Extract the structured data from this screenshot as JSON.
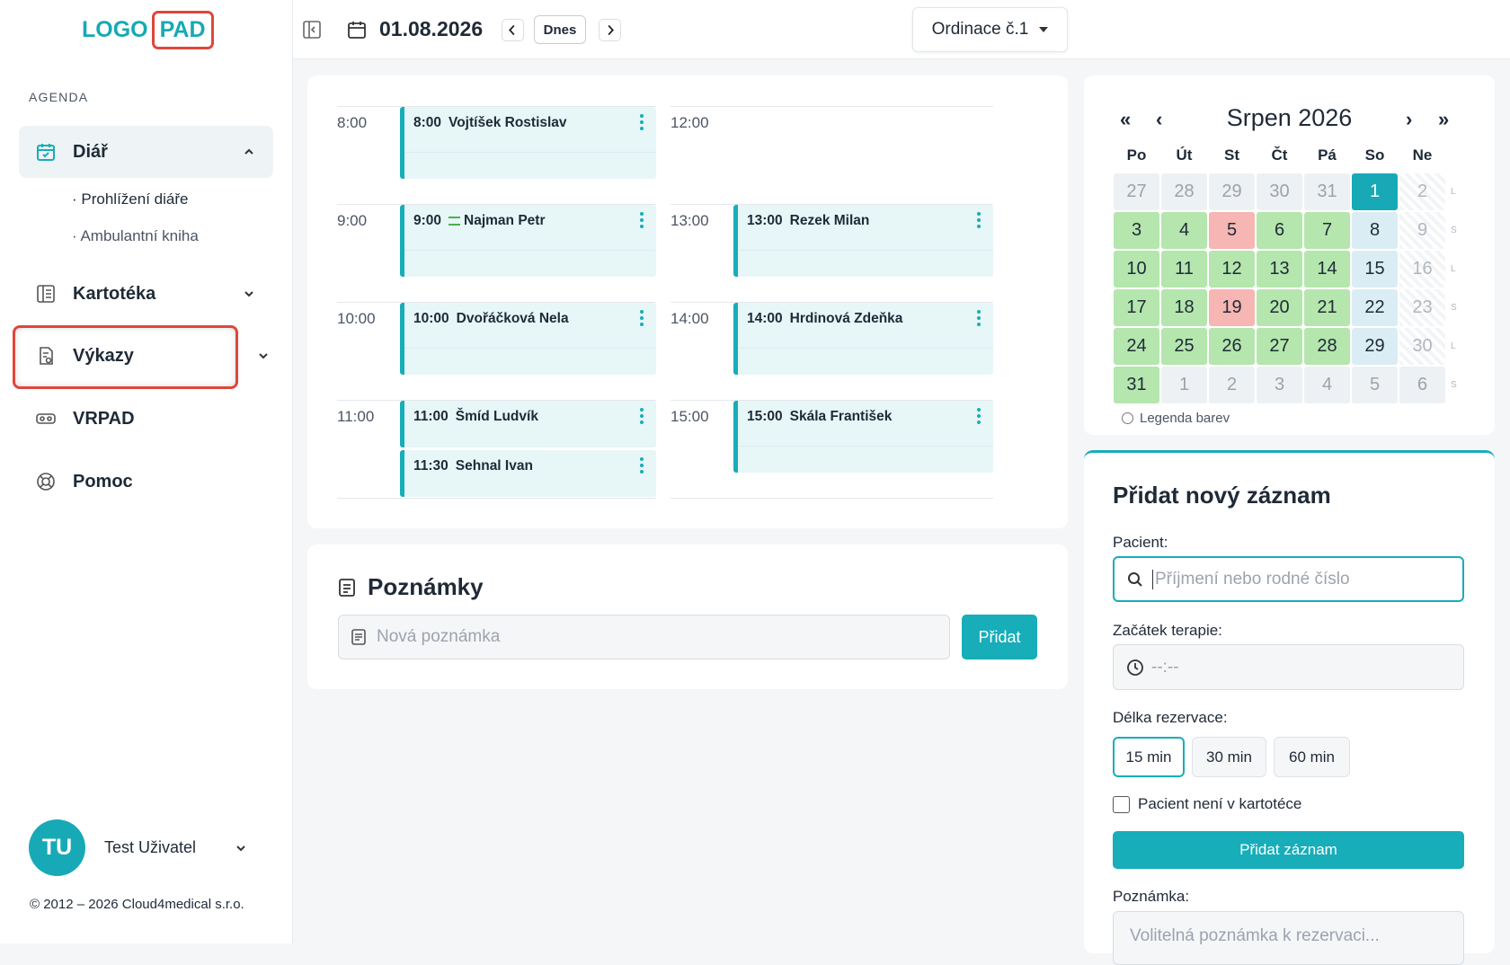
{
  "logo": {
    "left": "LOGO",
    "right": "PAD"
  },
  "sidebar": {
    "section": "AGENDA",
    "items": [
      {
        "label": "Diář",
        "sub": [
          "Prohlížení diáře",
          "Ambulantní kniha"
        ]
      },
      {
        "label": "Kartotéka"
      },
      {
        "label": "Výkazy"
      },
      {
        "label": "VRPAD"
      },
      {
        "label": "Pomoc"
      }
    ],
    "user": {
      "initials": "TU",
      "name": "Test Uživatel"
    },
    "footer": "© 2012 – 2026 Cloud4medical s.r.o."
  },
  "topbar": {
    "date": "01.08.2026",
    "today": "Dnes",
    "office": "Ordinace č.1"
  },
  "schedule": {
    "columns": [
      [
        {
          "hour": "8:00",
          "events": [
            {
              "time": "8:00",
              "name": "Vojtíšek Rostislav"
            }
          ]
        },
        {
          "hour": "9:00",
          "events": [
            {
              "time": "9:00",
              "name": "Najman Petr",
              "note_icon": true
            }
          ]
        },
        {
          "hour": "10:00",
          "events": [
            {
              "time": "10:00",
              "name": "Dvořáčková Nela"
            }
          ]
        },
        {
          "hour": "11:00",
          "events": [
            {
              "time": "11:00",
              "name": "Šmíd Ludvík"
            },
            {
              "time": "11:30",
              "name": "Sehnal Ivan"
            }
          ]
        }
      ],
      [
        {
          "hour": "12:00",
          "events": []
        },
        {
          "hour": "13:00",
          "events": [
            {
              "time": "13:00",
              "name": "Rezek Milan"
            }
          ]
        },
        {
          "hour": "14:00",
          "events": [
            {
              "time": "14:00",
              "name": "Hrdinová Zdeňka"
            }
          ]
        },
        {
          "hour": "15:00",
          "events": [
            {
              "time": "15:00",
              "name": "Skála František"
            }
          ]
        }
      ]
    ]
  },
  "notes": {
    "title": "Poznámky",
    "placeholder": "Nová poznámka",
    "button": "Přidat"
  },
  "calendar": {
    "nav": [
      "«",
      "‹",
      "›",
      "»"
    ],
    "title": "Srpen 2026",
    "weekdays": [
      "Po",
      "Út",
      "St",
      "Čt",
      "Pá",
      "So",
      "Ne"
    ],
    "weeks": [
      {
        "side": "L",
        "days": [
          {
            "day": 27,
            "state": "other"
          },
          {
            "day": 28,
            "state": "other"
          },
          {
            "day": 29,
            "state": "other"
          },
          {
            "day": 30,
            "state": "other"
          },
          {
            "day": 31,
            "state": "other"
          },
          {
            "day": 1,
            "state": "selected"
          },
          {
            "day": 2,
            "state": "sunday"
          }
        ]
      },
      {
        "side": "S",
        "days": [
          {
            "day": 3,
            "state": "free"
          },
          {
            "day": 4,
            "state": "free"
          },
          {
            "day": 5,
            "state": "full"
          },
          {
            "day": 6,
            "state": "free"
          },
          {
            "day": 7,
            "state": "free"
          },
          {
            "day": 8,
            "state": "saturday"
          },
          {
            "day": 9,
            "state": "sunday"
          }
        ]
      },
      {
        "side": "L",
        "days": [
          {
            "day": 10,
            "state": "free"
          },
          {
            "day": 11,
            "state": "free"
          },
          {
            "day": 12,
            "state": "free"
          },
          {
            "day": 13,
            "state": "free"
          },
          {
            "day": 14,
            "state": "free"
          },
          {
            "day": 15,
            "state": "saturday"
          },
          {
            "day": 16,
            "state": "sunday"
          }
        ]
      },
      {
        "side": "S",
        "days": [
          {
            "day": 17,
            "state": "free"
          },
          {
            "day": 18,
            "state": "free"
          },
          {
            "day": 19,
            "state": "full"
          },
          {
            "day": 20,
            "state": "free"
          },
          {
            "day": 21,
            "state": "free"
          },
          {
            "day": 22,
            "state": "saturday"
          },
          {
            "day": 23,
            "state": "sunday"
          }
        ]
      },
      {
        "side": "L",
        "days": [
          {
            "day": 24,
            "state": "free"
          },
          {
            "day": 25,
            "state": "free"
          },
          {
            "day": 26,
            "state": "free"
          },
          {
            "day": 27,
            "state": "free"
          },
          {
            "day": 28,
            "state": "free"
          },
          {
            "day": 29,
            "state": "saturday"
          },
          {
            "day": 30,
            "state": "sunday"
          }
        ]
      },
      {
        "side": "S",
        "days": [
          {
            "day": 31,
            "state": "free"
          },
          {
            "day": 1,
            "state": "other"
          },
          {
            "day": 2,
            "state": "other"
          },
          {
            "day": 3,
            "state": "other"
          },
          {
            "day": 4,
            "state": "other"
          },
          {
            "day": 5,
            "state": "other"
          },
          {
            "day": 6,
            "state": "other"
          }
        ]
      }
    ],
    "legend": "Legenda barev"
  },
  "form": {
    "title": "Přidat nový záznam",
    "patient_label": "Pacient:",
    "patient_placeholder": "Příjmení nebo rodné číslo",
    "start_label": "Začátek terapie:",
    "start_placeholder": "--:--",
    "length_label": "Délka rezervace:",
    "lengths": [
      "15 min",
      "30 min",
      "60 min"
    ],
    "checkbox": "Pacient není v kartotéce",
    "submit": "Přidat záznam",
    "note_label": "Poznámka:",
    "note_placeholder": "Volitelná poznámka k rezervaci..."
  }
}
